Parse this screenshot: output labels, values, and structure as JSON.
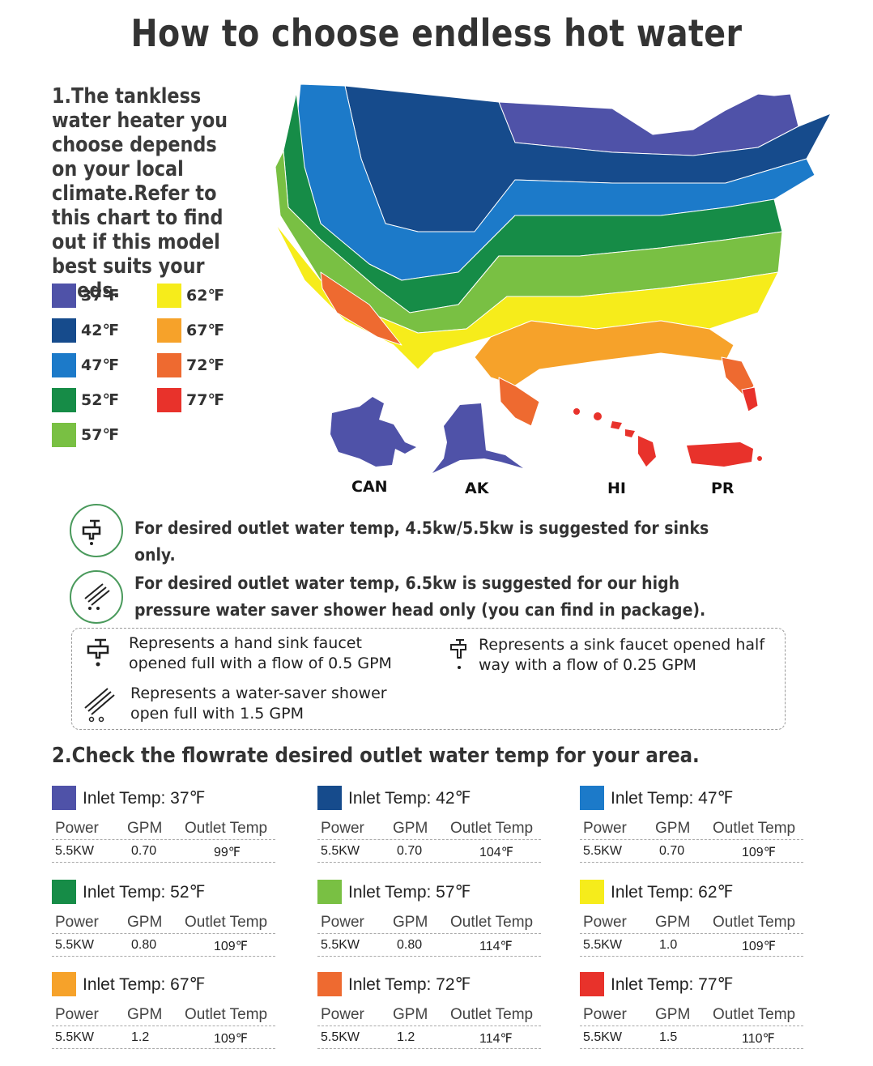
{
  "title": "How to choose endless hot water",
  "intro": "1.The tankless water heater you choose depends on your local climate.Refer to this chart to find out if this model best suits your needs.",
  "legend": [
    {
      "label": "37℉",
      "color": "#4f52a8"
    },
    {
      "label": "42℉",
      "color": "#164b8c"
    },
    {
      "label": "47℉",
      "color": "#1c7ac9"
    },
    {
      "label": "52℉",
      "color": "#168c47"
    },
    {
      "label": "57℉",
      "color": "#79c043"
    },
    {
      "label": "62℉",
      "color": "#f6ec1b"
    },
    {
      "label": "67℉",
      "color": "#f6a22a"
    },
    {
      "label": "72℉",
      "color": "#ee6a30"
    },
    {
      "label": "77℉",
      "color": "#e8322b"
    }
  ],
  "regions": {
    "can": "CAN",
    "ak": "AK",
    "hi": "HI",
    "pr": "PR"
  },
  "notes": [
    {
      "icon": "faucet-icon",
      "text": "For desired outlet water temp, 4.5kw/5.5kw is suggested for sinks only."
    },
    {
      "icon": "shower-head-icon",
      "text": "For desired outlet water temp, 6.5kw is suggested for our high pressure water saver shower head only (you can find in package)."
    }
  ],
  "key": {
    "full_faucet": "Represents a hand sink faucet opened full with a flow of 0.5 GPM",
    "half_faucet": "Represents a sink faucet opened half way with a flow of 0.25 GPM",
    "shower": "Represents a water-saver shower open full with 1.5 GPM"
  },
  "section2": "2.Check the flowrate desired outlet water temp for your area.",
  "table_headers": {
    "power": "Power",
    "gpm": "GPM",
    "outlet": "Outlet Temp"
  },
  "cards": [
    {
      "inlet": "Inlet Temp: 37℉",
      "color": "#4f52a8",
      "power": "5.5KW",
      "gpm": "0.70",
      "outlet": "99℉"
    },
    {
      "inlet": "Inlet Temp: 42℉",
      "color": "#164b8c",
      "power": "5.5KW",
      "gpm": "0.70",
      "outlet": "104℉"
    },
    {
      "inlet": "Inlet Temp: 47℉",
      "color": "#1c7ac9",
      "power": "5.5KW",
      "gpm": "0.70",
      "outlet": "109℉"
    },
    {
      "inlet": "Inlet Temp: 52℉",
      "color": "#168c47",
      "power": "5.5KW",
      "gpm": "0.80",
      "outlet": "109℉"
    },
    {
      "inlet": "Inlet Temp: 57℉",
      "color": "#79c043",
      "power": "5.5KW",
      "gpm": "0.80",
      "outlet": "114℉"
    },
    {
      "inlet": "Inlet Temp: 62℉",
      "color": "#f6ec1b",
      "power": "5.5KW",
      "gpm": "1.0",
      "outlet": "109℉"
    },
    {
      "inlet": "Inlet Temp: 67℉",
      "color": "#f6a22a",
      "power": "5.5KW",
      "gpm": "1.2",
      "outlet": "109℉"
    },
    {
      "inlet": "Inlet Temp: 72℉",
      "color": "#ee6a30",
      "power": "5.5KW",
      "gpm": "1.2",
      "outlet": "114℉"
    },
    {
      "inlet": "Inlet Temp: 77℉",
      "color": "#e8322b",
      "power": "5.5KW",
      "gpm": "1.5",
      "outlet": "110℉"
    }
  ]
}
